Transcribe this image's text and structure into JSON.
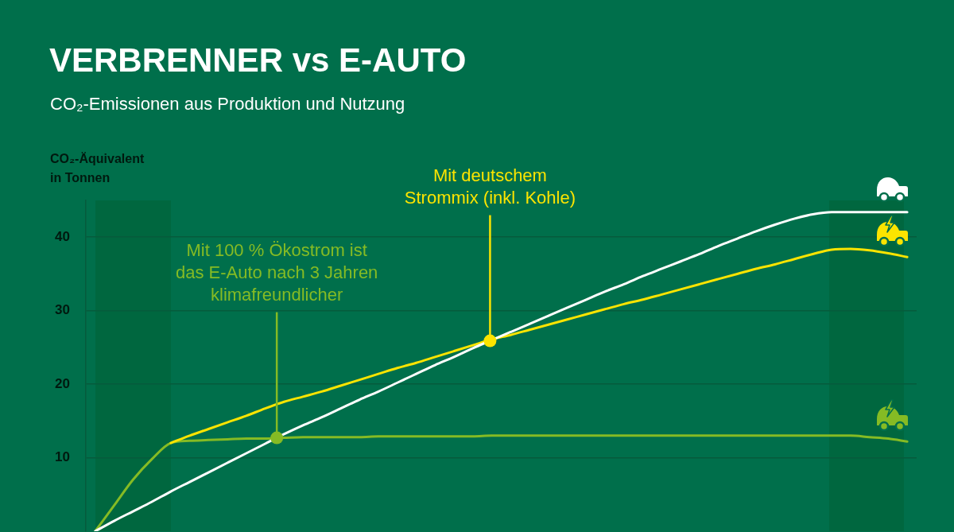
{
  "chart_data": {
    "type": "line",
    "title": "VERBRENNER vs E-AUTO",
    "subtitle": "CO₂-Emissionen aus Produktion und Nutzung",
    "ylabel": "CO₂-Äquivalent\nin Tonnen",
    "categories": [
      null,
      null,
      null,
      null,
      null,
      null,
      null,
      null,
      null,
      null,
      null,
      null,
      null,
      null,
      null,
      null,
      null,
      null,
      null,
      null,
      null,
      null,
      null,
      null,
      null,
      null,
      null,
      null,
      null,
      null,
      null,
      null,
      null,
      null,
      null,
      null,
      null,
      null,
      null,
      null,
      null,
      null,
      null,
      null
    ],
    "series": [
      {
        "color": "#ffffff",
        "values": [
          0,
          1.4,
          2.7,
          4.0,
          5.4,
          6.7,
          8.0,
          9.3,
          10.6,
          11.9,
          13.2,
          14.4,
          15.5,
          16.7,
          17.9,
          19.0,
          20.2,
          21.4,
          22.6,
          23.7,
          24.9,
          26.0,
          27.1,
          28.2,
          29.3,
          30.4,
          31.5,
          32.6,
          33.6,
          34.7,
          35.7,
          36.7,
          37.7,
          38.8,
          39.8,
          40.8,
          41.7,
          42.5,
          43.1,
          43.4,
          43.4,
          43.4,
          43.4,
          43.4
        ]
      },
      {
        "color": "#fbe400",
        "values": [
          null,
          null,
          null,
          null,
          12.0,
          13.0,
          13.9,
          14.8,
          15.7,
          16.7,
          17.6,
          18.3,
          19.0,
          19.8,
          20.6,
          21.4,
          22.2,
          22.9,
          23.7,
          24.5,
          25.3,
          26.1,
          26.7,
          27.4,
          28.1,
          28.8,
          29.5,
          30.2,
          30.9,
          31.5,
          32.2,
          32.9,
          33.6,
          34.3,
          35.0,
          35.7,
          36.3,
          37.0,
          37.7,
          38.3,
          38.4,
          38.2,
          37.8,
          37.3
        ]
      },
      {
        "color": "#85bb24",
        "values": [
          0,
          3.5,
          7.0,
          9.8,
          12.0,
          12.3,
          12.4,
          12.5,
          12.6,
          12.6,
          12.7,
          12.8,
          12.8,
          12.8,
          12.8,
          12.9,
          12.9,
          12.9,
          12.9,
          12.9,
          12.9,
          13.0,
          13.0,
          13.0,
          13.0,
          13.0,
          13.0,
          13.0,
          13.0,
          13.0,
          13.0,
          13.0,
          13.0,
          13.0,
          13.0,
          13.0,
          13.0,
          13.0,
          13.0,
          13.0,
          13.0,
          12.8,
          12.6,
          12.2
        ]
      }
    ],
    "ylim": [
      0,
      45
    ],
    "yticks": [
      10,
      20,
      30,
      40
    ],
    "grid": "y",
    "tick_labels": "y",
    "marker": "none",
    "line_style": "solid",
    "annotations": [
      {
        "text": "Mit 100 % Ökostrom ist\ndas E-Auto nach 3 Jahren\nklimafreundlicher",
        "y": 12.7
      },
      {
        "text": "Mit deutschem\nStrommix (inkl. Kohle)",
        "y": 25.9
      }
    ]
  }
}
